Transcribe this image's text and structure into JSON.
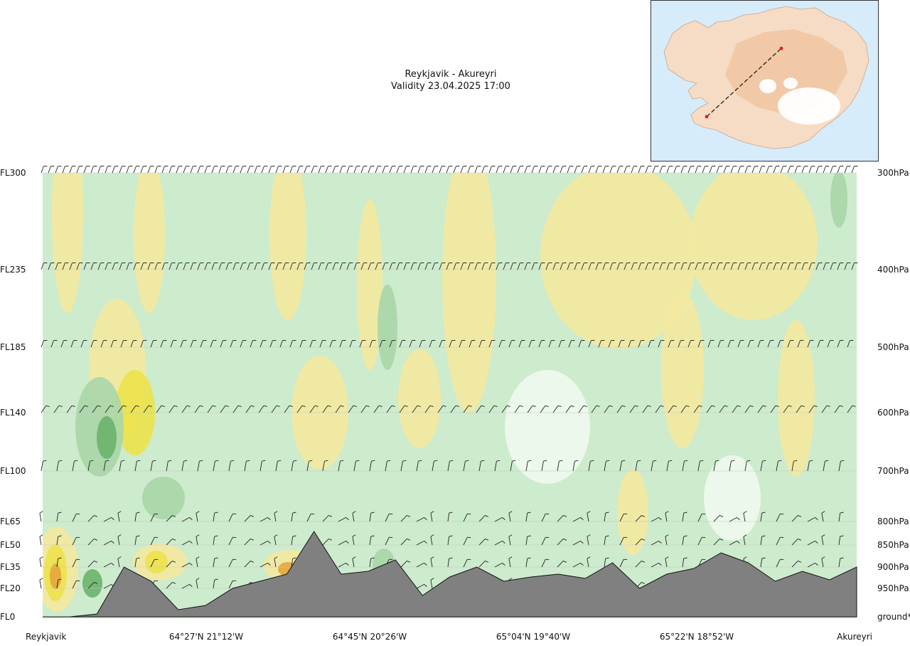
{
  "title": {
    "route": "Reykjavik - Akureyri",
    "validity": "Validity 23.04.2025 17:00"
  },
  "colors": {
    "band_dark_green": "#6ab46a",
    "band_mid_green": "#a8d6a8",
    "band_light_green": "#cdebcd",
    "band_pale": "#eefaee",
    "band_cream": "#fbf6cf",
    "band_yellow": "#f4e9a0",
    "band_gold": "#ece24a",
    "band_orange": "#e6a53a",
    "terrain": "#808080",
    "inset_sea": "#d6ecfb",
    "inset_land": "#f6dcc4",
    "route_line": "#111111",
    "route_end": "#e02020"
  },
  "chart_data": {
    "type": "heatmap",
    "left_axis": {
      "tick_labels": [
        "FL300",
        "FL235",
        "FL185",
        "FL140",
        "FL100",
        "FL65",
        "FL50",
        "FL35",
        "FL20",
        "FL0"
      ]
    },
    "right_axis": {
      "tick_labels": [
        "300hPa",
        "400hPa",
        "500hPa",
        "600hPa",
        "700hPa",
        "800hPa",
        "850hPa",
        "900hPa",
        "950hPa",
        "ground*"
      ]
    },
    "x_axis": {
      "tick_labels": [
        "Reykjavik",
        "64°27'N 21°12'W",
        "64°45'N 20°26'W",
        "65°04'N 19°40'W",
        "65°22'N 18°52'W",
        "Akureyri"
      ]
    },
    "wind_barb_rows": [
      "300hPa",
      "400hPa",
      "500hPa",
      "600hPa",
      "700hPa",
      "800hPa",
      "850hPa",
      "900hPa",
      "950hPa"
    ],
    "terrain_profile_fl": [
      0,
      0,
      0.2,
      3.5,
      2.5,
      0.5,
      0.8,
      2,
      2.5,
      3,
      6,
      3,
      3.2,
      4,
      1.5,
      2.8,
      3.5,
      2.5,
      2.8,
      3,
      2.7,
      3.8,
      2,
      3,
      3.4,
      4.5,
      3.8,
      2.5,
      3.2,
      2.6,
      3.5
    ]
  },
  "inset": {
    "route": {
      "start": "Reykjavik",
      "end": "Akureyri"
    }
  }
}
